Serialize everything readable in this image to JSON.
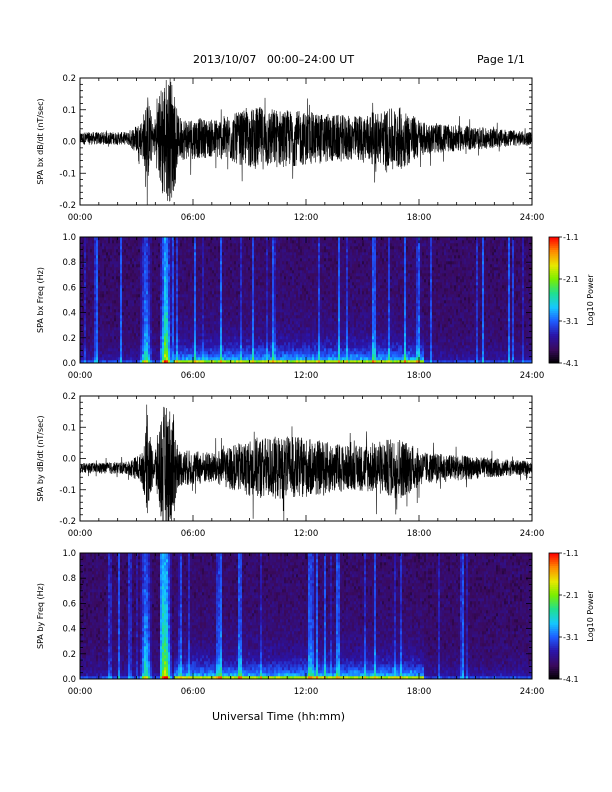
{
  "header": {
    "date_range": "2013/10/07   00:00–24:00 UT",
    "page": "Page 1/1"
  },
  "footer": {
    "xlabel": "Universal Time (hh:mm)"
  },
  "chart_data": [
    {
      "type": "line",
      "ylabel": "SPA bx dB/dt (nT/sec)",
      "xlim": [
        0,
        24
      ],
      "ylim": [
        -0.2,
        0.2
      ],
      "x_ticklabels": [
        "00:00",
        "06:00",
        "12:00",
        "18:00",
        "24:00"
      ],
      "y_ticks": [
        -0.2,
        -0.1,
        0.0,
        0.1,
        0.2
      ],
      "y_ticklabels": [
        "-0.2",
        "-0.1",
        "0.0",
        "0.1",
        "0.2"
      ],
      "baseline": 0.01,
      "envelope": [
        {
          "t": 0.0,
          "amp": 0.02
        },
        {
          "t": 2.5,
          "amp": 0.02
        },
        {
          "t": 3.3,
          "amp": 0.06
        },
        {
          "t": 3.6,
          "amp": 0.14
        },
        {
          "t": 3.9,
          "amp": 0.04
        },
        {
          "t": 4.4,
          "amp": 0.2
        },
        {
          "t": 4.9,
          "amp": 0.2
        },
        {
          "t": 5.2,
          "amp": 0.07
        },
        {
          "t": 7.0,
          "amp": 0.06
        },
        {
          "t": 9.5,
          "amp": 0.1
        },
        {
          "t": 11.0,
          "amp": 0.09
        },
        {
          "t": 14.5,
          "amp": 0.07
        },
        {
          "t": 17.0,
          "amp": 0.1
        },
        {
          "t": 18.3,
          "amp": 0.05
        },
        {
          "t": 24.0,
          "amp": 0.02
        }
      ]
    },
    {
      "type": "heatmap",
      "ylabel": "SPA bx Freq (Hz)",
      "colorbar_label": "Log10 Power",
      "xlim": [
        0,
        24
      ],
      "ylim": [
        0,
        1.0
      ],
      "x_ticklabels": [
        "00:00",
        "06:00",
        "12:00",
        "18:00",
        "24:00"
      ],
      "y_ticks": [
        0.0,
        0.2,
        0.4,
        0.6,
        0.8,
        1.0
      ],
      "y_ticklabels": [
        "0.0",
        "0.2",
        "0.4",
        "0.6",
        "0.8",
        "1.0"
      ],
      "colorbar_range": [
        -4.1,
        -1.1
      ],
      "colorbar_ticks": [
        -1.1,
        -2.1,
        -3.1,
        -4.1
      ],
      "colorbar_ticklabels": [
        "-1.1",
        "-2.1",
        "-3.1",
        "-4.1"
      ],
      "colormap": [
        "#000000",
        "#3a0a5e",
        "#2a14a8",
        "#1e5bff",
        "#16c8ff",
        "#20e090",
        "#7aee00",
        "#e8e800",
        "#ff8a00",
        "#ff0000"
      ],
      "bursts": [
        {
          "t": 3.5,
          "strength": 0.55
        },
        {
          "t": 4.55,
          "strength": 0.85
        }
      ],
      "activity_window": [
        5.0,
        18.3
      ]
    },
    {
      "type": "line",
      "ylabel": "SPA by dB/dt (nT/sec)",
      "xlim": [
        0,
        24
      ],
      "ylim": [
        -0.2,
        0.2
      ],
      "x_ticklabels": [
        "00:00",
        "06:00",
        "12:00",
        "18:00",
        "24:00"
      ],
      "y_ticks": [
        -0.2,
        -0.1,
        0.0,
        0.1,
        0.2
      ],
      "y_ticklabels": [
        "-0.2",
        "-0.1",
        "0.0",
        "0.1",
        "0.2"
      ],
      "baseline": -0.03,
      "envelope": [
        {
          "t": 0.0,
          "amp": 0.015
        },
        {
          "t": 2.5,
          "amp": 0.02
        },
        {
          "t": 3.3,
          "amp": 0.05
        },
        {
          "t": 3.6,
          "amp": 0.16
        },
        {
          "t": 3.9,
          "amp": 0.04
        },
        {
          "t": 4.4,
          "amp": 0.2
        },
        {
          "t": 4.9,
          "amp": 0.2
        },
        {
          "t": 5.2,
          "amp": 0.06
        },
        {
          "t": 7.0,
          "amp": 0.05
        },
        {
          "t": 9.5,
          "amp": 0.1
        },
        {
          "t": 11.5,
          "amp": 0.1
        },
        {
          "t": 14.5,
          "amp": 0.07
        },
        {
          "t": 17.0,
          "amp": 0.1
        },
        {
          "t": 18.3,
          "amp": 0.05
        },
        {
          "t": 24.0,
          "amp": 0.02
        }
      ]
    },
    {
      "type": "heatmap",
      "ylabel": "SPA by Freq (Hz)",
      "colorbar_label": "Log10 Power",
      "xlim": [
        0,
        24
      ],
      "ylim": [
        0,
        1.0
      ],
      "x_ticklabels": [
        "00:00",
        "06:00",
        "12:00",
        "18:00",
        "24:00"
      ],
      "y_ticks": [
        0.0,
        0.2,
        0.4,
        0.6,
        0.8,
        1.0
      ],
      "y_ticklabels": [
        "0.0",
        "0.2",
        "0.4",
        "0.6",
        "0.8",
        "1.0"
      ],
      "colorbar_range": [
        -4.1,
        -1.1
      ],
      "colorbar_ticks": [
        -1.1,
        -2.1,
        -3.1,
        -4.1
      ],
      "colorbar_ticklabels": [
        "-1.1",
        "-2.1",
        "-3.1",
        "-4.1"
      ],
      "colormap": [
        "#000000",
        "#3a0a5e",
        "#2a14a8",
        "#1e5bff",
        "#16c8ff",
        "#20e090",
        "#7aee00",
        "#e8e800",
        "#ff8a00",
        "#ff0000"
      ],
      "bursts": [
        {
          "t": 3.5,
          "strength": 0.6
        },
        {
          "t": 4.55,
          "strength": 0.9
        }
      ],
      "activity_window": [
        5.0,
        18.3
      ]
    }
  ]
}
